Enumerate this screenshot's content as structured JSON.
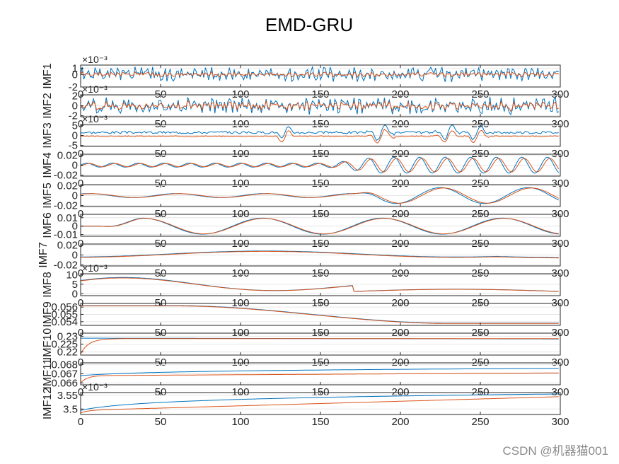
{
  "title": "EMD-GRU",
  "watermark": "CSDN @机器猫001",
  "colors": {
    "actual": "#0072BD",
    "predicted": "#D95319",
    "grid": "#e6e6e6",
    "axis": "#262626"
  },
  "chart_data": {
    "type": "line",
    "title": "EMD-GRU",
    "xlim": [
      0,
      300
    ],
    "x_ticks": [
      "0",
      "50",
      "100",
      "150",
      "200",
      "250",
      "300"
    ],
    "grid": "horizontal",
    "n_points": 300,
    "subplots": [
      {
        "ylabel": "IMF1",
        "ylim": [
          -0.002,
          0.0015
        ],
        "yticks": [
          {
            "v": 0.001,
            "label": "1"
          },
          {
            "v": 0,
            "label": "0"
          },
          {
            "v": -0.002,
            "label": "-2"
          }
        ],
        "exponent": "×10⁻³",
        "pattern": {
          "kind": "noise",
          "amp": 0.0009,
          "pred_amp": 0.0004,
          "seed": 1
        }
      },
      {
        "ylabel": "IMF2",
        "ylim": [
          -0.0022,
          0.0022
        ],
        "yticks": [
          {
            "v": 0.002,
            "label": "2"
          },
          {
            "v": 0,
            "label": "0"
          },
          {
            "v": -0.002,
            "label": "-2"
          }
        ],
        "exponent": "×10⁻³",
        "pattern": {
          "kind": "noise",
          "amp": 0.0013,
          "pred_amp": 0.0009,
          "seed": 2
        }
      },
      {
        "ylabel": "IMF3",
        "ylim": [
          -0.0055,
          0.0055
        ],
        "yticks": [
          {
            "v": 0.005,
            "label": "5"
          },
          {
            "v": 0,
            "label": "0"
          },
          {
            "v": -0.005,
            "label": "-5"
          }
        ],
        "exponent": "×10⁻³",
        "pattern": {
          "kind": "bursts",
          "amp": 0.0012,
          "offset": 0.0015,
          "seed": 3
        }
      },
      {
        "ylabel": "IMF4",
        "ylim": [
          -0.022,
          0.022
        ],
        "yticks": [
          {
            "v": 0.02,
            "label": "0.02"
          },
          {
            "v": 0,
            "label": "0"
          },
          {
            "v": -0.02,
            "label": "-0.02"
          }
        ],
        "exponent": "",
        "pattern": {
          "kind": "wave4",
          "seed": 4
        }
      },
      {
        "ylabel": "IMF5",
        "ylim": [
          -0.022,
          0.022
        ],
        "yticks": [
          {
            "v": 0.02,
            "label": "0.02"
          },
          {
            "v": 0,
            "label": "0"
          },
          {
            "v": -0.02,
            "label": "-0.02"
          }
        ],
        "exponent": "",
        "pattern": {
          "kind": "wave5",
          "seed": 5
        }
      },
      {
        "ylabel": "IMF6",
        "ylim": [
          -0.012,
          0.014
        ],
        "yticks": [
          {
            "v": 0.01,
            "label": "0.01"
          },
          {
            "v": 0,
            "label": "0"
          },
          {
            "v": -0.01,
            "label": "-0.01"
          }
        ],
        "exponent": "",
        "pattern": {
          "kind": "wave6",
          "seed": 6
        }
      },
      {
        "ylabel": "IMF7",
        "ylim": [
          -0.022,
          0.022
        ],
        "yticks": [
          {
            "v": 0.02,
            "label": "0.02"
          },
          {
            "v": 0,
            "label": "0"
          },
          {
            "v": -0.02,
            "label": "-0.02"
          }
        ],
        "exponent": "",
        "pattern": {
          "kind": "wave7",
          "seed": 7
        }
      },
      {
        "ylabel": "IMF8",
        "ylim": [
          -0.001,
          0.0105
        ],
        "yticks": [
          {
            "v": 0.01,
            "label": "10"
          },
          {
            "v": 0.005,
            "label": "5"
          },
          {
            "v": 0,
            "label": "0"
          }
        ],
        "exponent": "×10⁻³",
        "pattern": {
          "kind": "wave8",
          "seed": 8
        }
      },
      {
        "ylabel": "IMF9",
        "ylim": [
          0.0535,
          0.0565
        ],
        "yticks": [
          {
            "v": 0.056,
            "label": "0.056"
          },
          {
            "v": 0.055,
            "label": "0.055"
          },
          {
            "v": 0.054,
            "label": "0.054"
          }
        ],
        "exponent": "",
        "pattern": {
          "kind": "trend9",
          "seed": 9
        }
      },
      {
        "ylabel": "IMF10",
        "ylim": [
          0.218,
          0.232
        ],
        "yticks": [
          {
            "v": 0.23,
            "label": "0.23"
          },
          {
            "v": 0.225,
            "label": "0.225"
          },
          {
            "v": 0.22,
            "label": "0.22"
          }
        ],
        "exponent": "",
        "pattern": {
          "kind": "trend10",
          "seed": 10
        }
      },
      {
        "ylabel": "IMF11",
        "ylim": [
          0.0658,
          0.0682
        ],
        "yticks": [
          {
            "v": 0.068,
            "label": "0.068"
          },
          {
            "v": 0.067,
            "label": "0.067"
          },
          {
            "v": 0.066,
            "label": "0.066"
          }
        ],
        "exponent": "",
        "pattern": {
          "kind": "trend11",
          "seed": 11
        }
      },
      {
        "ylabel": "IMF12",
        "ylim": [
          0.00348,
          0.00356
        ],
        "yticks": [
          {
            "v": 0.00355,
            "label": "3.55"
          },
          {
            "v": 0.0035,
            "label": "3.5"
          }
        ],
        "exponent": "×10⁻³",
        "pattern": {
          "kind": "trend12",
          "seed": 12
        }
      }
    ]
  }
}
